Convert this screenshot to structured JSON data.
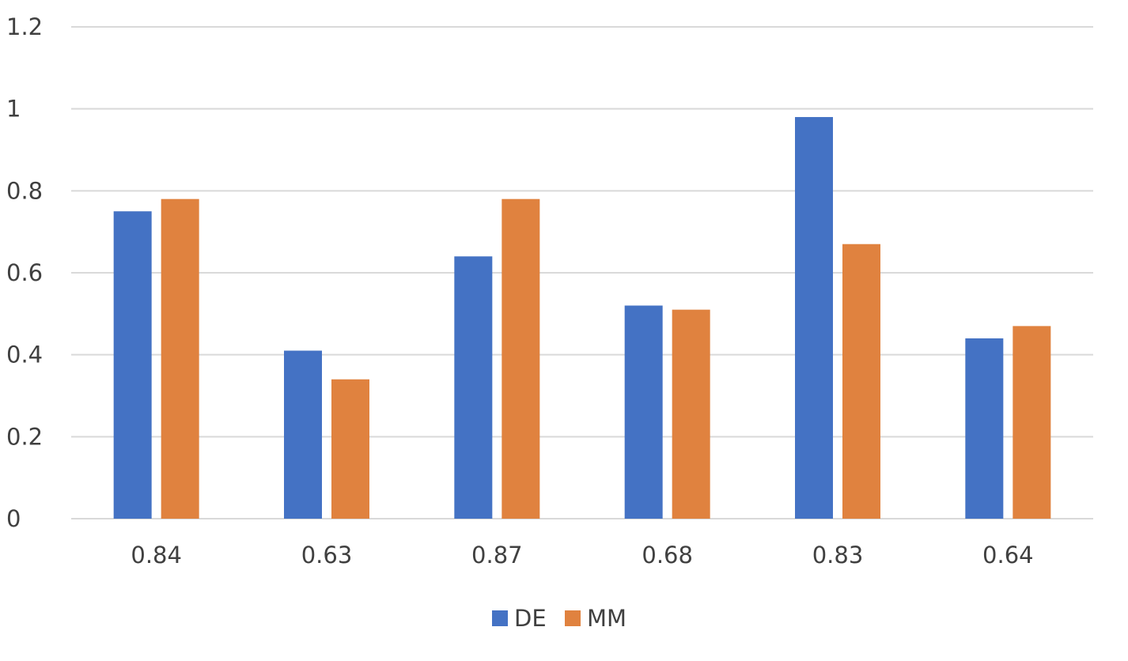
{
  "chart_data": {
    "type": "bar",
    "categories": [
      "0.84",
      "0.63",
      "0.87",
      "0.68",
      "0.83",
      "0.64"
    ],
    "series": [
      {
        "name": "DE",
        "color": "#4472C4",
        "values": [
          0.75,
          0.41,
          0.64,
          0.52,
          0.98,
          0.44
        ]
      },
      {
        "name": "MM",
        "color": "#E0823F",
        "values": [
          0.78,
          0.34,
          0.78,
          0.51,
          0.67,
          0.47
        ]
      }
    ],
    "ylim": [
      0,
      1.2
    ],
    "yticks": [
      "0",
      "0.2",
      "0.4",
      "0.6",
      "0.8",
      "1",
      "1.2"
    ],
    "grid": true,
    "legend": "bottom",
    "gridline_color": "#D9D9D9",
    "text_color": "#404040"
  }
}
